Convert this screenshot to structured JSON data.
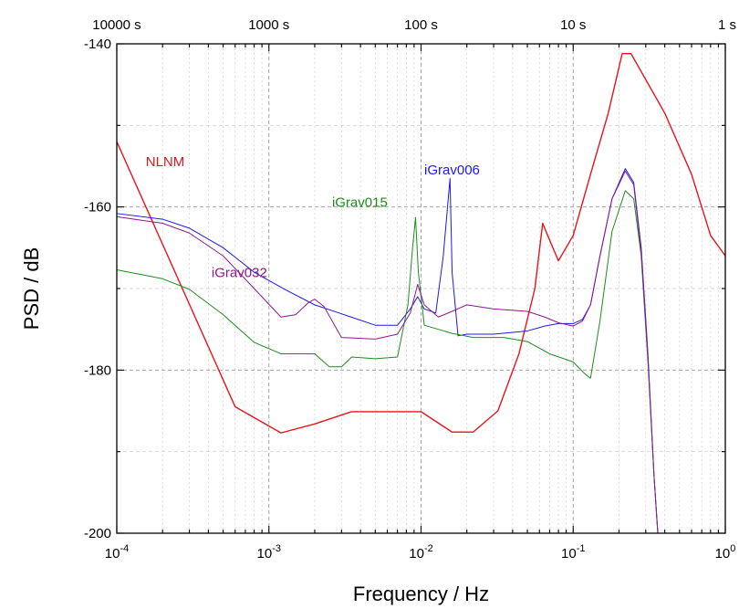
{
  "chart_data": {
    "type": "line",
    "xlabel": "Frequency / Hz",
    "ylabel": "PSD / dB",
    "x_scale": "log",
    "xlim": [
      0.0001,
      1
    ],
    "ylim": [
      -200,
      -140
    ],
    "grid": true,
    "bottom_ticks": [
      {
        "value": 0.0001,
        "base": "10",
        "exp": "-4"
      },
      {
        "value": 0.001,
        "base": "10",
        "exp": "-3"
      },
      {
        "value": 0.01,
        "base": "10",
        "exp": "-2"
      },
      {
        "value": 0.1,
        "base": "10",
        "exp": "-1"
      },
      {
        "value": 1,
        "base": "10",
        "exp": "0"
      }
    ],
    "top_ticks": [
      {
        "value": 0.0001,
        "label": "10000 s"
      },
      {
        "value": 0.001,
        "label": "1000 s"
      },
      {
        "value": 0.01,
        "label": "100 s"
      },
      {
        "value": 0.1,
        "label": "10 s"
      },
      {
        "value": 1,
        "label": "1 s"
      }
    ],
    "y_ticks": [
      {
        "value": -140,
        "label": "-140"
      },
      {
        "value": -160,
        "label": "-160"
      },
      {
        "value": -180,
        "label": "-180"
      },
      {
        "value": -200,
        "label": "-200"
      }
    ],
    "series": [
      {
        "name": "NLNM",
        "color": "#e8141c",
        "label_at": {
          "x": 0.000155,
          "y": -155
        },
        "points": [
          [
            0.0001,
            -152
          ],
          [
            0.0006,
            -184.5
          ],
          [
            0.0012,
            -187.7
          ],
          [
            0.002,
            -186.6
          ],
          [
            0.0035,
            -185.1
          ],
          [
            0.0055,
            -185.1
          ],
          [
            0.01,
            -185.1
          ],
          [
            0.016,
            -187.6
          ],
          [
            0.022,
            -187.6
          ],
          [
            0.032,
            -185
          ],
          [
            0.044,
            -178
          ],
          [
            0.056,
            -170
          ],
          [
            0.063,
            -162
          ],
          [
            0.068,
            -163.5
          ],
          [
            0.08,
            -166.6
          ],
          [
            0.1,
            -163.5
          ],
          [
            0.13,
            -156
          ],
          [
            0.17,
            -148.5
          ],
          [
            0.21,
            -141.2
          ],
          [
            0.24,
            -141.2
          ],
          [
            0.4,
            -148.5
          ],
          [
            0.6,
            -156
          ],
          [
            0.8,
            -163.5
          ],
          [
            1,
            -166
          ]
        ]
      },
      {
        "name": "iGrav006",
        "color": "#1a1ae6",
        "label_at": {
          "x": 0.0105,
          "y": -156
        },
        "points": [
          [
            0.0001,
            -160.8
          ],
          [
            0.0002,
            -161.5
          ],
          [
            0.0003,
            -162.6
          ],
          [
            0.0005,
            -165
          ],
          [
            0.0008,
            -168
          ],
          [
            0.0013,
            -170.2
          ],
          [
            0.002,
            -172
          ],
          [
            0.003,
            -173.1
          ],
          [
            0.005,
            -174.5
          ],
          [
            0.007,
            -174.5
          ],
          [
            0.0085,
            -172.5
          ],
          [
            0.0095,
            -171
          ],
          [
            0.0105,
            -172.5
          ],
          [
            0.0125,
            -173
          ],
          [
            0.014,
            -166
          ],
          [
            0.0155,
            -156.5
          ],
          [
            0.016,
            -168
          ],
          [
            0.0175,
            -175.8
          ],
          [
            0.02,
            -175.6
          ],
          [
            0.03,
            -175.6
          ],
          [
            0.05,
            -175.2
          ],
          [
            0.065,
            -174.6
          ],
          [
            0.08,
            -174.3
          ],
          [
            0.1,
            -174.3
          ],
          [
            0.115,
            -173.8
          ],
          [
            0.13,
            -172
          ],
          [
            0.15,
            -166
          ],
          [
            0.18,
            -159
          ],
          [
            0.22,
            -155.3
          ],
          [
            0.25,
            -157
          ],
          [
            0.28,
            -165
          ],
          [
            0.31,
            -178
          ],
          [
            0.34,
            -193
          ],
          [
            0.36,
            -200
          ]
        ]
      },
      {
        "name": "iGrav015",
        "color": "#1e8c1e",
        "label_at": {
          "x": 0.0026,
          "y": -160
        },
        "points": [
          [
            0.0001,
            -167.7
          ],
          [
            0.0002,
            -168.8
          ],
          [
            0.0003,
            -170.1
          ],
          [
            0.0005,
            -173.2
          ],
          [
            0.0008,
            -176.6
          ],
          [
            0.0012,
            -178
          ],
          [
            0.002,
            -178
          ],
          [
            0.0025,
            -179.6
          ],
          [
            0.003,
            -179.6
          ],
          [
            0.0035,
            -178.4
          ],
          [
            0.005,
            -178.6
          ],
          [
            0.007,
            -178.4
          ],
          [
            0.0082,
            -172
          ],
          [
            0.0088,
            -165
          ],
          [
            0.0092,
            -161.3
          ],
          [
            0.0096,
            -168
          ],
          [
            0.0105,
            -174.5
          ],
          [
            0.013,
            -175
          ],
          [
            0.016,
            -175.5
          ],
          [
            0.022,
            -176
          ],
          [
            0.035,
            -176
          ],
          [
            0.05,
            -176.5
          ],
          [
            0.07,
            -178
          ],
          [
            0.1,
            -179
          ],
          [
            0.12,
            -180.5
          ],
          [
            0.13,
            -181
          ],
          [
            0.15,
            -174
          ],
          [
            0.18,
            -163
          ],
          [
            0.22,
            -158
          ],
          [
            0.25,
            -159
          ],
          [
            0.28,
            -166
          ],
          [
            0.31,
            -179
          ],
          [
            0.34,
            -193
          ],
          [
            0.36,
            -200
          ]
        ]
      },
      {
        "name": "iGrav032",
        "color": "#8b1a8b",
        "label_at": {
          "x": 0.00042,
          "y": -168.6
        },
        "points": [
          [
            0.0001,
            -161.2
          ],
          [
            0.0002,
            -162
          ],
          [
            0.0003,
            -163.2
          ],
          [
            0.0005,
            -166
          ],
          [
            0.0008,
            -170
          ],
          [
            0.0012,
            -173.5
          ],
          [
            0.0015,
            -173.2
          ],
          [
            0.0018,
            -171.8
          ],
          [
            0.002,
            -171.3
          ],
          [
            0.0023,
            -172.2
          ],
          [
            0.003,
            -176
          ],
          [
            0.005,
            -176.2
          ],
          [
            0.007,
            -175.6
          ],
          [
            0.0085,
            -173
          ],
          [
            0.0095,
            -169.5
          ],
          [
            0.0105,
            -172
          ],
          [
            0.013,
            -173.5
          ],
          [
            0.016,
            -172.8
          ],
          [
            0.02,
            -172
          ],
          [
            0.03,
            -172.5
          ],
          [
            0.05,
            -172.8
          ],
          [
            0.065,
            -173.5
          ],
          [
            0.08,
            -174.2
          ],
          [
            0.1,
            -174.6
          ],
          [
            0.115,
            -174
          ],
          [
            0.13,
            -172
          ],
          [
            0.15,
            -166
          ],
          [
            0.18,
            -159
          ],
          [
            0.22,
            -155.6
          ],
          [
            0.25,
            -157.3
          ],
          [
            0.28,
            -165.5
          ],
          [
            0.31,
            -178.5
          ],
          [
            0.34,
            -193
          ],
          [
            0.36,
            -200
          ]
        ]
      }
    ]
  }
}
